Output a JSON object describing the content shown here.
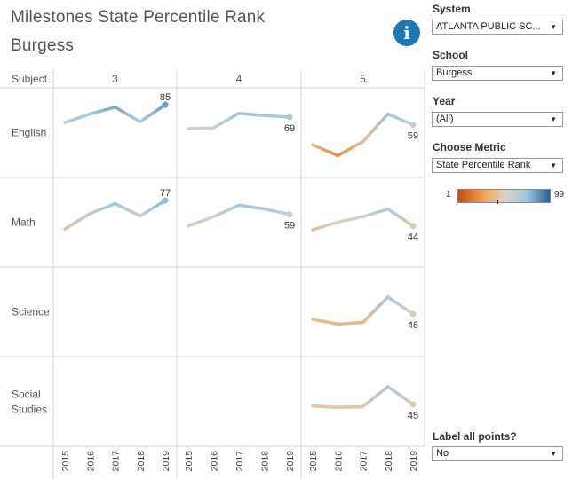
{
  "title": "Milestones State Percentile Rank",
  "subtitle": "Burgess",
  "info_icon": "i",
  "filters": {
    "system": {
      "label": "System",
      "value": "ATLANTA PUBLIC SC..."
    },
    "school": {
      "label": "School",
      "value": "Burgess"
    },
    "year": {
      "label": "Year",
      "value": "(All)"
    },
    "metric": {
      "label": "Choose Metric",
      "value": "State Percentile Rank"
    },
    "label_points": {
      "label": "Label all points?",
      "value": "No"
    }
  },
  "legend": {
    "min": "1",
    "max": "99",
    "colors": [
      "#c14f13",
      "#f0a95e",
      "#d9d4c8",
      "#9cc6e0",
      "#2a5d95"
    ]
  },
  "chart_data": {
    "type": "line",
    "title": "Milestones State Percentile Rank",
    "row_header": "Subject",
    "grades": [
      "3",
      "4",
      "5"
    ],
    "subjects": [
      "English",
      "Math",
      "Science",
      "Social\nStudies"
    ],
    "years": [
      "2015",
      "2016",
      "2017",
      "2018",
      "2019"
    ],
    "ylim": [
      1,
      99
    ],
    "series": [
      {
        "subject": "English",
        "grade": "3",
        "values": [
          62,
          73,
          82,
          63,
          85
        ],
        "label": "85"
      },
      {
        "subject": "English",
        "grade": "4",
        "values": [
          54,
          55,
          74,
          71,
          69
        ],
        "label": "69"
      },
      {
        "subject": "English",
        "grade": "5",
        "values": [
          33,
          19,
          37,
          73,
          59
        ],
        "label": "59"
      },
      {
        "subject": "Math",
        "grade": "3",
        "values": [
          40,
          60,
          73,
          57,
          77
        ],
        "label": "77"
      },
      {
        "subject": "Math",
        "grade": "4",
        "values": [
          44,
          56,
          71,
          66,
          59
        ],
        "label": "59"
      },
      {
        "subject": "Math",
        "grade": "5",
        "values": [
          39,
          49,
          56,
          66,
          44
        ],
        "label": "44"
      },
      {
        "subject": "Science",
        "grade": "5",
        "values": [
          39,
          33,
          35,
          68,
          46
        ],
        "label": "46"
      },
      {
        "subject": "Social\nStudies",
        "grade": "5",
        "values": [
          43,
          41,
          42,
          68,
          45
        ],
        "label": "45"
      }
    ]
  }
}
